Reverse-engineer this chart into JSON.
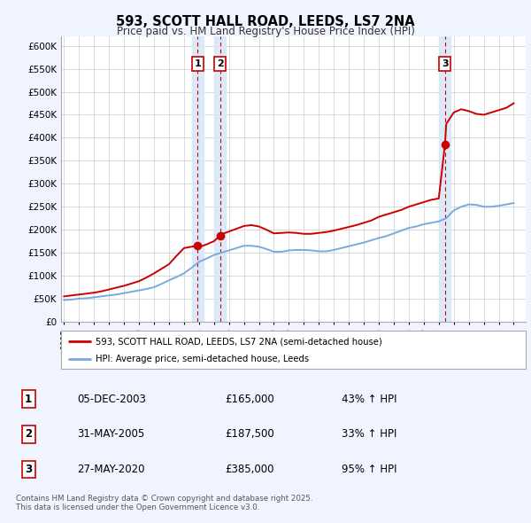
{
  "title": "593, SCOTT HALL ROAD, LEEDS, LS7 2NA",
  "subtitle": "Price paid vs. HM Land Registry's House Price Index (HPI)",
  "bg_color": "#f0f4ff",
  "plot_bg_color": "#ffffff",
  "grid_color": "#cccccc",
  "red_line_color": "#cc0000",
  "blue_line_color": "#7aaadd",
  "sale_marker_color": "#cc0000",
  "annotation_border": "#cc0000",
  "vband_color": "#d8e8f8",
  "legend_label_red": "593, SCOTT HALL ROAD, LEEDS, LS7 2NA (semi-detached house)",
  "legend_label_blue": "HPI: Average price, semi-detached house, Leeds",
  "footer_text": "Contains HM Land Registry data © Crown copyright and database right 2025.\nThis data is licensed under the Open Government Licence v3.0.",
  "sale1_date": "05-DEC-2003",
  "sale1_price": 165000,
  "sale1_hpi_pct": "43% ↑ HPI",
  "sale2_date": "31-MAY-2005",
  "sale2_price": 187500,
  "sale2_hpi_pct": "33% ↑ HPI",
  "sale3_date": "27-MAY-2020",
  "sale3_price": 385000,
  "sale3_hpi_pct": "95% ↑ HPI",
  "sale1_x": 2003.92,
  "sale2_x": 2005.41,
  "sale3_x": 2020.41,
  "hpi_years": [
    1995,
    1995.5,
    1996,
    1996.5,
    1997,
    1997.5,
    1998,
    1998.5,
    1999,
    1999.5,
    2000,
    2000.5,
    2001,
    2001.5,
    2002,
    2002.5,
    2003,
    2003.5,
    2004,
    2004.5,
    2005,
    2005.5,
    2006,
    2006.5,
    2007,
    2007.5,
    2008,
    2008.5,
    2009,
    2009.5,
    2010,
    2010.5,
    2011,
    2011.5,
    2012,
    2012.5,
    2013,
    2013.5,
    2014,
    2014.5,
    2015,
    2015.5,
    2016,
    2016.5,
    2017,
    2017.5,
    2018,
    2018.5,
    2019,
    2019.5,
    2020,
    2020.5,
    2021,
    2021.5,
    2022,
    2022.5,
    2023,
    2023.5,
    2024,
    2024.5,
    2025
  ],
  "hpi_values": [
    47000,
    48000,
    50000,
    51000,
    53000,
    55000,
    57000,
    59000,
    62000,
    65000,
    68000,
    71000,
    75000,
    82000,
    90000,
    97000,
    105000,
    117000,
    130000,
    137000,
    145000,
    150000,
    155000,
    160000,
    165000,
    165000,
    163000,
    158000,
    152000,
    152000,
    155000,
    156000,
    156000,
    155000,
    153000,
    153000,
    156000,
    160000,
    164000,
    168000,
    172000,
    177000,
    182000,
    186000,
    192000,
    198000,
    204000,
    207000,
    212000,
    215000,
    218000,
    225000,
    242000,
    250000,
    255000,
    254000,
    250000,
    250000,
    252000,
    255000,
    258000
  ],
  "red_years": [
    1995,
    1995.5,
    1996,
    1996.5,
    1997,
    1997.5,
    1998,
    1998.5,
    1999,
    1999.5,
    2000,
    2000.5,
    2001,
    2001.5,
    2002,
    2002.5,
    2003,
    2003.5,
    2003.92,
    2004,
    2004.5,
    2005,
    2005.41,
    2005.5,
    2006,
    2006.5,
    2007,
    2007.5,
    2008,
    2008.5,
    2009,
    2009.5,
    2010,
    2010.5,
    2011,
    2011.5,
    2012,
    2012.5,
    2013,
    2013.5,
    2014,
    2014.5,
    2015,
    2015.5,
    2016,
    2016.5,
    2017,
    2017.5,
    2018,
    2018.5,
    2019,
    2019.5,
    2020,
    2020.41,
    2020.5,
    2021,
    2021.5,
    2022,
    2022.5,
    2023,
    2023.5,
    2024,
    2024.5,
    2025
  ],
  "red_values": [
    55000,
    57000,
    59000,
    61000,
    63000,
    66000,
    70000,
    74000,
    78000,
    83000,
    88000,
    96000,
    105000,
    115000,
    125000,
    143000,
    160000,
    163000,
    165000,
    162000,
    168000,
    175000,
    187500,
    190000,
    196000,
    202000,
    208000,
    210000,
    207000,
    200000,
    192000,
    193000,
    194000,
    193000,
    191000,
    191000,
    193000,
    195000,
    198000,
    202000,
    206000,
    210000,
    215000,
    220000,
    228000,
    233000,
    238000,
    243000,
    250000,
    255000,
    260000,
    265000,
    268000,
    385000,
    430000,
    455000,
    462000,
    458000,
    452000,
    450000,
    455000,
    460000,
    465000,
    475000
  ],
  "ylim": [
    0,
    620000
  ],
  "yticks": [
    0,
    50000,
    100000,
    150000,
    200000,
    250000,
    300000,
    350000,
    400000,
    450000,
    500000,
    550000,
    600000
  ],
  "ytick_labels": [
    "£0",
    "£50K",
    "£100K",
    "£150K",
    "£200K",
    "£250K",
    "£300K",
    "£350K",
    "£400K",
    "£450K",
    "£500K",
    "£550K",
    "£600K"
  ],
  "xmin": 1994.8,
  "xmax": 2025.8
}
